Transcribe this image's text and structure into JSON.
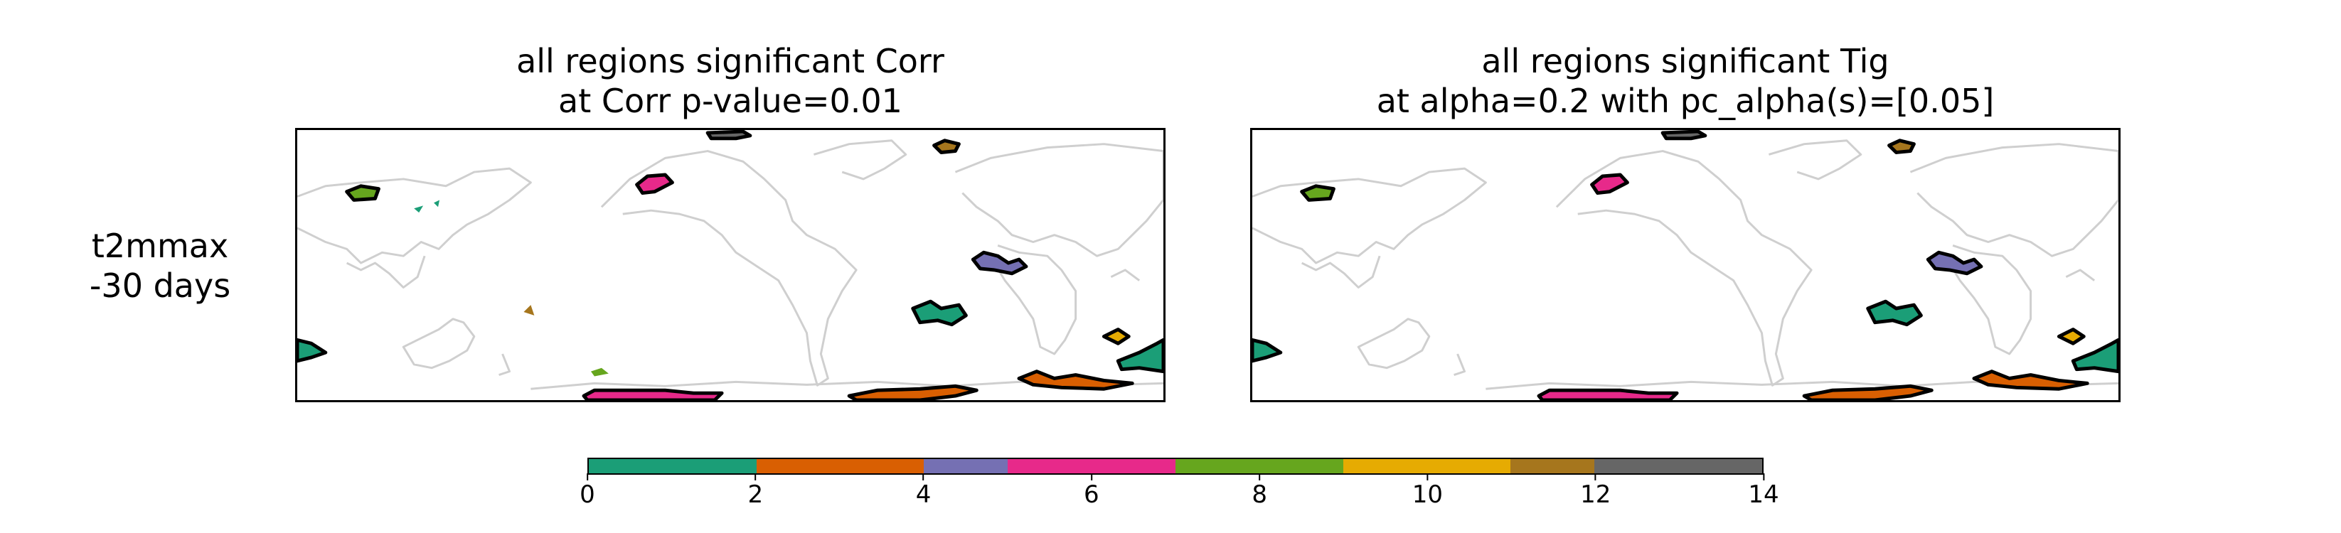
{
  "panels": [
    {
      "title_line1": "all regions significant Corr",
      "title_line2": "at Corr p-value=0.01"
    },
    {
      "title_line1": "all regions significant Tig",
      "title_line2": "at alpha=0.2 with pc_alpha(s)=[0.05]"
    }
  ],
  "row_label": {
    "line1": "t2mmax",
    "line2": "-30 days"
  },
  "colorbar": {
    "tick_labels": [
      "0",
      "2",
      "4",
      "6",
      "8",
      "10",
      "12",
      "14"
    ],
    "colors": [
      "#1b9e77",
      "#1b9e77",
      "#d95f02",
      "#d95f02",
      "#7570b3",
      "#e7298a",
      "#e7298a",
      "#66a61e",
      "#66a61e",
      "#e6ab02",
      "#e6ab02",
      "#a6761d",
      "#666666",
      "#666666"
    ]
  }
}
